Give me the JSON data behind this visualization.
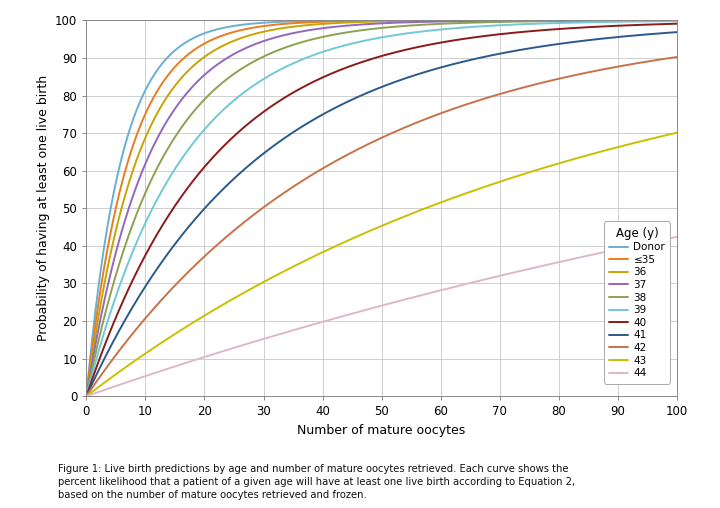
{
  "title": "",
  "xlabel": "Number of mature oocytes",
  "ylabel": "Probability of having at least one live birth",
  "xlim": [
    0,
    100
  ],
  "ylim": [
    0,
    100
  ],
  "xticks": [
    0,
    10,
    20,
    30,
    40,
    50,
    60,
    70,
    80,
    90,
    100
  ],
  "yticks": [
    0,
    10,
    20,
    30,
    40,
    50,
    60,
    70,
    80,
    90,
    100
  ],
  "caption": "Figure 1: Live birth predictions by age and number of mature oocytes retrieved. Each curve shows the\npercent likelihood that a patient of a given age will have at least one live birth according to Equation 2,\nbased on the number of mature oocytes retrieved and frozen.",
  "curves": [
    {
      "label": "Donor",
      "color": "#6BAED6",
      "p_per_egg": 0.155
    },
    {
      "label": "≤35",
      "color": "#E87D22",
      "p_per_egg": 0.13
    },
    {
      "label": "36",
      "color": "#C8A400",
      "p_per_egg": 0.11
    },
    {
      "label": "37",
      "color": "#9467BD",
      "p_per_egg": 0.092
    },
    {
      "label": "38",
      "color": "#8CA252",
      "p_per_egg": 0.075
    },
    {
      "label": "39",
      "color": "#70C8D8",
      "p_per_egg": 0.06
    },
    {
      "label": "40",
      "color": "#8B1A1A",
      "p_per_egg": 0.046
    },
    {
      "label": "41",
      "color": "#2B5A8A",
      "p_per_egg": 0.034
    },
    {
      "label": "42",
      "color": "#C8724A",
      "p_per_egg": 0.023
    },
    {
      "label": "43",
      "color": "#C8C000",
      "p_per_egg": 0.012
    },
    {
      "label": "44",
      "color": "#DDB8CC",
      "p_per_egg": 0.0055
    }
  ],
  "legend_title": "Age (y)",
  "background_color": "#FFFFFF",
  "grid_color": "#C8C8C8",
  "figure_width": 7.2,
  "figure_height": 5.08,
  "dpi": 100
}
